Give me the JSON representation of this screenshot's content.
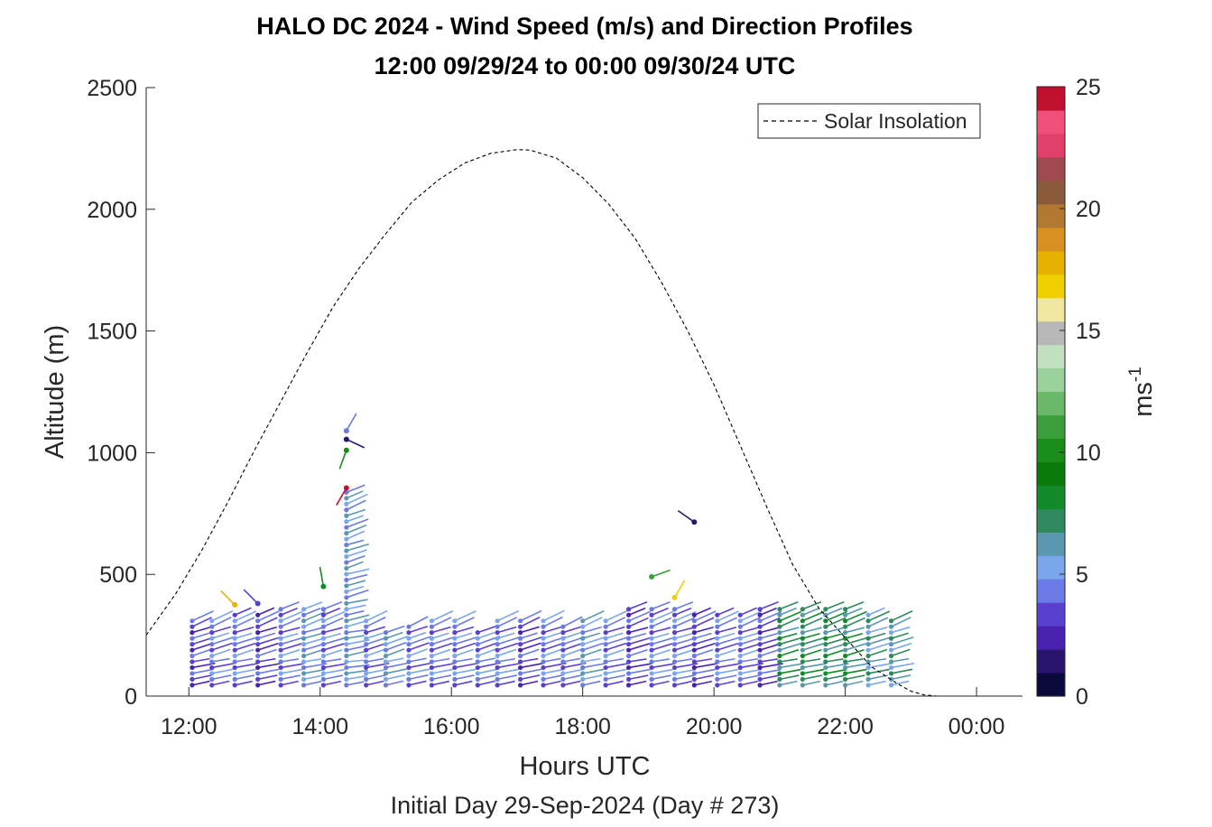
{
  "chart_data": {
    "type": "scatter",
    "title": "HALO DC 2024 - Wind Speed (m/s) and Direction Profiles",
    "title_line2": "12:00 09/29/24 to 00:00 09/30/24  UTC",
    "xlabel": "Hours UTC",
    "ylabel": "Altitude (m)",
    "footer": "Initial Day 29-Sep-2024 (Day # 273)",
    "x_ticks": [
      "12:00",
      "14:00",
      "16:00",
      "18:00",
      "20:00",
      "22:00",
      "00:00"
    ],
    "x_tick_hours": [
      12,
      14,
      16,
      18,
      20,
      22,
      24
    ],
    "xlim_hours": [
      11.35,
      24.7
    ],
    "y_ticks": [
      0,
      500,
      1000,
      1500,
      2000,
      2500
    ],
    "ylim": [
      0,
      2500
    ],
    "grid": false,
    "legend": {
      "placement": "top-right",
      "entries": [
        "Solar Insolation"
      ]
    },
    "colorbar": {
      "label": "ms",
      "label_exponent": "-1",
      "ticks": [
        0,
        5,
        10,
        15,
        20,
        25
      ],
      "range": [
        0,
        25
      ],
      "colors": [
        "#0a0a3c",
        "#2a1470",
        "#4a22b0",
        "#5a40d0",
        "#6a7ae6",
        "#7aa6ec",
        "#5a98b0",
        "#2e8a5c",
        "#128a2a",
        "#0a7a0a",
        "#1a8c1a",
        "#3a9e3a",
        "#6ab86a",
        "#9ad09a",
        "#c0e0c0",
        "#b8b8b8",
        "#f0e8a0",
        "#f0d000",
        "#e8b000",
        "#d89020",
        "#b07830",
        "#8a5a3a",
        "#a04a50",
        "#e0406a",
        "#f05078",
        "#c01030"
      ]
    },
    "solar_insolation": {
      "name": "Solar Insolation",
      "x_hours": [
        11.35,
        11.8,
        12.2,
        12.6,
        13.0,
        13.4,
        13.8,
        14.2,
        14.6,
        15.0,
        15.4,
        15.8,
        16.2,
        16.6,
        17.0,
        17.2,
        17.6,
        18.0,
        18.4,
        18.8,
        19.2,
        19.6,
        20.0,
        20.4,
        20.8,
        21.2,
        21.6,
        22.0,
        22.4,
        22.8,
        23.0,
        23.2,
        23.4,
        24.7
      ],
      "y_m": [
        250,
        420,
        600,
        800,
        1010,
        1210,
        1410,
        1600,
        1760,
        1900,
        2030,
        2120,
        2190,
        2230,
        2245,
        2243,
        2210,
        2130,
        2020,
        1880,
        1700,
        1500,
        1280,
        1030,
        780,
        540,
        360,
        240,
        120,
        50,
        20,
        5,
        0,
        0
      ]
    },
    "wind_profiles": [
      {
        "time_hour": 12.05,
        "altitude_top_m": 330,
        "speed_m_s": 3
      },
      {
        "time_hour": 12.35,
        "altitude_top_m": 320,
        "speed_m_s": 4
      },
      {
        "time_hour": 12.7,
        "altitude_top_m": 340,
        "speed_m_s": 4
      },
      {
        "time_hour": 13.05,
        "altitude_top_m": 340,
        "speed_m_s": 3
      },
      {
        "time_hour": 13.4,
        "altitude_top_m": 370,
        "speed_m_s": 4
      },
      {
        "time_hour": 13.75,
        "altitude_top_m": 380,
        "speed_m_s": 5
      },
      {
        "time_hour": 14.05,
        "altitude_top_m": 370,
        "speed_m_s": 4
      },
      {
        "time_hour": 14.4,
        "altitude_top_m": 850,
        "speed_m_s": 5
      },
      {
        "time_hour": 14.7,
        "altitude_top_m": 320,
        "speed_m_s": 4
      },
      {
        "time_hour": 15.0,
        "altitude_top_m": 280,
        "speed_m_s": 5
      },
      {
        "time_hour": 15.35,
        "altitude_top_m": 290,
        "speed_m_s": 4
      },
      {
        "time_hour": 15.7,
        "altitude_top_m": 330,
        "speed_m_s": 4
      },
      {
        "time_hour": 16.05,
        "altitude_top_m": 330,
        "speed_m_s": 4
      },
      {
        "time_hour": 16.4,
        "altitude_top_m": 280,
        "speed_m_s": 4
      },
      {
        "time_hour": 16.7,
        "altitude_top_m": 330,
        "speed_m_s": 4
      },
      {
        "time_hour": 17.05,
        "altitude_top_m": 320,
        "speed_m_s": 3
      },
      {
        "time_hour": 17.4,
        "altitude_top_m": 310,
        "speed_m_s": 4
      },
      {
        "time_hour": 17.7,
        "altitude_top_m": 300,
        "speed_m_s": 4
      },
      {
        "time_hour": 18.0,
        "altitude_top_m": 330,
        "speed_m_s": 5
      },
      {
        "time_hour": 18.35,
        "altitude_top_m": 330,
        "speed_m_s": 4
      },
      {
        "time_hour": 18.7,
        "altitude_top_m": 370,
        "speed_m_s": 3
      },
      {
        "time_hour": 19.05,
        "altitude_top_m": 370,
        "speed_m_s": 4
      },
      {
        "time_hour": 19.4,
        "altitude_top_m": 370,
        "speed_m_s": 4
      },
      {
        "time_hour": 19.7,
        "altitude_top_m": 350,
        "speed_m_s": 3
      },
      {
        "time_hour": 20.05,
        "altitude_top_m": 350,
        "speed_m_s": 4
      },
      {
        "time_hour": 20.4,
        "altitude_top_m": 350,
        "speed_m_s": 4
      },
      {
        "time_hour": 20.7,
        "altitude_top_m": 370,
        "speed_m_s": 3
      },
      {
        "time_hour": 21.0,
        "altitude_top_m": 370,
        "speed_m_s": 7
      },
      {
        "time_hour": 21.35,
        "altitude_top_m": 370,
        "speed_m_s": 7
      },
      {
        "time_hour": 21.7,
        "altitude_top_m": 370,
        "speed_m_s": 7
      },
      {
        "time_hour": 22.0,
        "altitude_top_m": 370,
        "speed_m_s": 7
      },
      {
        "time_hour": 22.35,
        "altitude_top_m": 350,
        "speed_m_s": 6
      },
      {
        "time_hour": 22.7,
        "altitude_top_m": 330,
        "speed_m_s": 6
      }
    ],
    "isolated_barbs": [
      {
        "time_hour": 12.7,
        "altitude_m": 375,
        "speed_m_s": 18
      },
      {
        "time_hour": 13.05,
        "altitude_m": 380,
        "speed_m_s": 3
      },
      {
        "time_hour": 14.05,
        "altitude_m": 450,
        "speed_m_s": 8
      },
      {
        "time_hour": 14.4,
        "altitude_m": 1090,
        "speed_m_s": 4
      },
      {
        "time_hour": 14.4,
        "altitude_m": 1055,
        "speed_m_s": 1
      },
      {
        "time_hour": 14.4,
        "altitude_m": 1010,
        "speed_m_s": 10
      },
      {
        "time_hour": 14.4,
        "altitude_m": 855,
        "speed_m_s": 25
      },
      {
        "time_hour": 19.05,
        "altitude_m": 490,
        "speed_m_s": 11
      },
      {
        "time_hour": 19.4,
        "altitude_m": 405,
        "speed_m_s": 17
      },
      {
        "time_hour": 19.7,
        "altitude_m": 715,
        "speed_m_s": 1
      }
    ]
  }
}
